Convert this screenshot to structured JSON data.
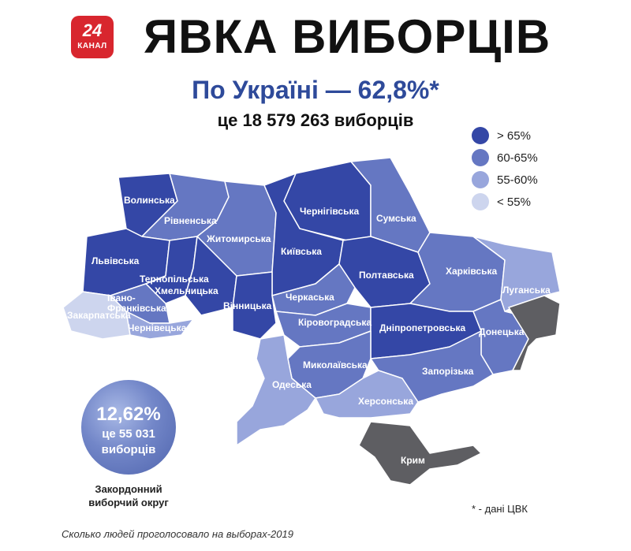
{
  "logo": {
    "number": "24",
    "text": "КАНАЛ",
    "color": "#d8262e"
  },
  "header": {
    "title": "ЯВКА ВИБОРЦІВ",
    "subtitle": "По Україні — 62,8%*",
    "voters": "це 18 579 263 виборців"
  },
  "legend": [
    {
      "label": "> 65%",
      "color": "#3447a6"
    },
    {
      "label": "60-65%",
      "color": "#6577c2"
    },
    {
      "label": "55-60%",
      "color": "#98a6dc"
    },
    {
      "label": "< 55%",
      "color": "#cdd5ee"
    }
  ],
  "map": {
    "no_data_color": "#5e5e62",
    "regions": [
      {
        "name": "Волинська",
        "tier": "> 65%"
      },
      {
        "name": "Рівненська",
        "tier": "60-65%"
      },
      {
        "name": "Житомирська",
        "tier": "60-65%"
      },
      {
        "name": "Чернігівська",
        "tier": "> 65%"
      },
      {
        "name": "Сумська",
        "tier": "60-65%"
      },
      {
        "name": "Київська",
        "tier": "> 65%"
      },
      {
        "name": "Львівська",
        "tier": "> 65%"
      },
      {
        "name": "Тернопільська",
        "tier": "> 65%"
      },
      {
        "name": "Хмельницька",
        "tier": "> 65%"
      },
      {
        "name": "Вінницька",
        "tier": "> 65%"
      },
      {
        "name": "Полтавська",
        "tier": "> 65%"
      },
      {
        "name": "Харківська",
        "tier": "60-65%"
      },
      {
        "name": "Луганська",
        "tier": "55-60%"
      },
      {
        "name": "Івано-Франківська",
        "tier": "60-65%"
      },
      {
        "name": "Закарпатська",
        "tier": "< 55%"
      },
      {
        "name": "Чернівецька",
        "tier": "55-60%"
      },
      {
        "name": "Черкаська",
        "tier": "60-65%"
      },
      {
        "name": "Кіровоградська",
        "tier": "60-65%"
      },
      {
        "name": "Дніпропетровська",
        "tier": "> 65%"
      },
      {
        "name": "Донецька",
        "tier": "60-65%"
      },
      {
        "name": "Миколаївська",
        "tier": "60-65%"
      },
      {
        "name": "Запорізька",
        "tier": "60-65%"
      },
      {
        "name": "Одеська",
        "tier": "55-60%"
      },
      {
        "name": "Херсонська",
        "tier": "55-60%"
      },
      {
        "name": "Крим",
        "tier": "no data"
      }
    ]
  },
  "abroad": {
    "percent": "12,62%",
    "line2": "це 55 031",
    "line3": "виборців",
    "caption_line1": "Закордонний",
    "caption_line2": "виборчий округ"
  },
  "note": "* - дані ЦВК",
  "caption": "Сколько людей проголосовало на выборах-2019"
}
